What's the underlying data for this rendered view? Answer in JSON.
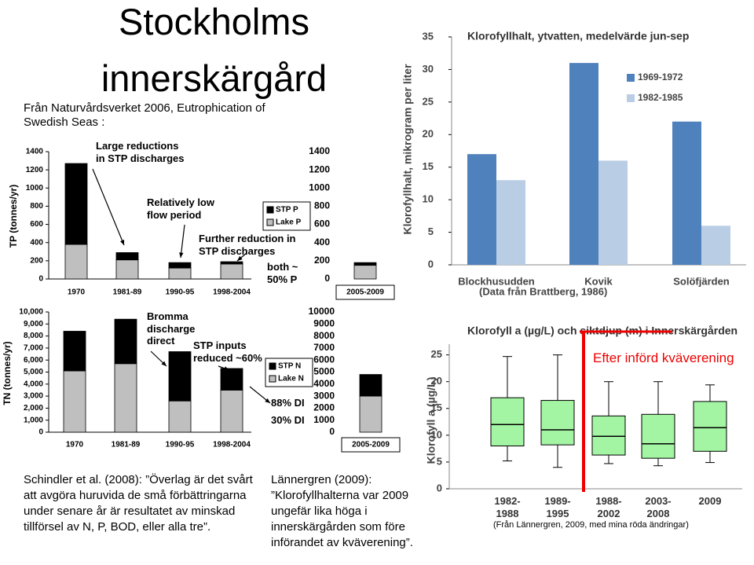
{
  "slide": {
    "title": "Stockholms innerskärgård",
    "source": "Från Naturvårdsverket 2006, Eutrophication of Swedish Seas :",
    "caption_left": "Schindler et al. (2008): ”Överlag är det svårt att avgöra huruvida de små förbättringarna under senare år är resultatet av minskad tillförsel av N, P, BOD, eller alla tre”.",
    "caption_right": "Lännergren (2009): ”Klorofyllhalterna var 2009 ungefär lika höga i innerskärgården som före införandet av kväverening”."
  },
  "chart_data": [
    {
      "type": "stacked_bar",
      "y_label": "TP (tonnes/yr)",
      "categories": [
        "1970",
        "1981-89",
        "1990-95",
        "1998-2004",
        "2005-2009"
      ],
      "series": [
        {
          "name": "STP P",
          "color": "#000000",
          "values": [
            890,
            80,
            60,
            25,
            30
          ]
        },
        {
          "name": "Lake P",
          "color": "#bfbfbf",
          "values": [
            380,
            210,
            120,
            165,
            150
          ]
        }
      ],
      "ylim": [
        0,
        1400
      ],
      "yticks": [
        0,
        200,
        400,
        600,
        800,
        1000,
        1200,
        1400
      ],
      "y2lim": [
        0,
        1400
      ],
      "y2ticks": [
        0,
        200,
        400,
        600,
        800,
        1000,
        1200,
        1400
      ],
      "annotations": [
        "Large reductions in STP discharges",
        "Relatively low flow period",
        "Further reduction in STP discharges",
        "both ~ 50% P"
      ]
    },
    {
      "type": "stacked_bar",
      "y_label": "TN (tonnes/yr)",
      "categories": [
        "1970",
        "1981-89",
        "1990-95",
        "1998-2004",
        "2005-2009"
      ],
      "series": [
        {
          "name": "STP N",
          "color": "#000000",
          "values": [
            3300,
            3700,
            4100,
            1800,
            1800
          ]
        },
        {
          "name": "Lake N",
          "color": "#bfbfbf",
          "values": [
            5100,
            5700,
            2600,
            3500,
            3000
          ]
        }
      ],
      "ylim": [
        0,
        10000
      ],
      "yticks": [
        0,
        {
          "value": 1000,
          "label": "1,000"
        },
        {
          "value": 2000,
          "label": "2,000"
        },
        {
          "value": 3000,
          "label": "3,000"
        },
        {
          "value": 4000,
          "label": "4,000"
        },
        {
          "value": 5000,
          "label": "5,000"
        },
        {
          "value": 6000,
          "label": "6,000"
        },
        {
          "value": 7000,
          "label": "7,000"
        },
        {
          "value": 8000,
          "label": "8,000"
        },
        {
          "value": 9000,
          "label": "9,000"
        },
        {
          "value": 10000,
          "label": "10,000"
        }
      ],
      "y2lim": [
        0,
        10000
      ],
      "y2ticks": [
        0,
        1000,
        2000,
        3000,
        4000,
        5000,
        6000,
        7000,
        8000,
        9000,
        10000
      ],
      "annotations": [
        "Bromma discharge direct",
        "STP inputs reduced ~60%",
        "88% DI",
        "30% DI"
      ]
    },
    {
      "type": "bar",
      "title": "Klorofyllhalt, ytvatten, medelvärde jun-sep",
      "y_label": "Klorofyllhalt, mikrogram per liter",
      "categories": [
        "Blockhusudden",
        "Kovik",
        "Solöfjärden"
      ],
      "series": [
        {
          "name": "1969-1972",
          "color": "#4f81bd",
          "values": [
            17,
            31,
            22
          ]
        },
        {
          "name": "1982-1985",
          "color": "#b9cde5",
          "values": [
            13,
            16,
            6
          ]
        }
      ],
      "ylim": [
        0,
        35
      ],
      "yticks": [
        0,
        5,
        10,
        15,
        20,
        25,
        30,
        35
      ],
      "note": "(Data från Brattberg, 1986)"
    },
    {
      "type": "box",
      "title": "Klorofyll a (µg/L) och siktdjup (m) i Innerskärgården",
      "y_label": "Klorofyll a (µg/L)",
      "categories": [
        "1982-1988",
        "1989-1995",
        "1988-2002",
        "2003-2008",
        "2009"
      ],
      "color": "#a3f5a3",
      "stats": [
        {
          "min": 5.2,
          "q1": 8,
          "median": 12,
          "q3": 17,
          "max": 24.7
        },
        {
          "min": 4,
          "q1": 8.2,
          "median": 11,
          "q3": 16.5,
          "max": 25
        },
        {
          "min": 4.7,
          "q1": 6.3,
          "median": 9.8,
          "q3": 13.6,
          "max": 20
        },
        {
          "min": 4.3,
          "q1": 5.7,
          "median": 8.4,
          "q3": 13.9,
          "max": 20
        },
        {
          "min": 4.9,
          "q1": 7,
          "median": 11.4,
          "q3": 16.3,
          "max": 19.4
        }
      ],
      "ylim": [
        0,
        27
      ],
      "yticks": [
        0,
        5,
        10,
        15,
        20,
        25
      ],
      "annotations": [
        "Efter införd kväverening"
      ],
      "note": "(Från Lännergren, 2009, med mina röda ändringar)"
    }
  ]
}
